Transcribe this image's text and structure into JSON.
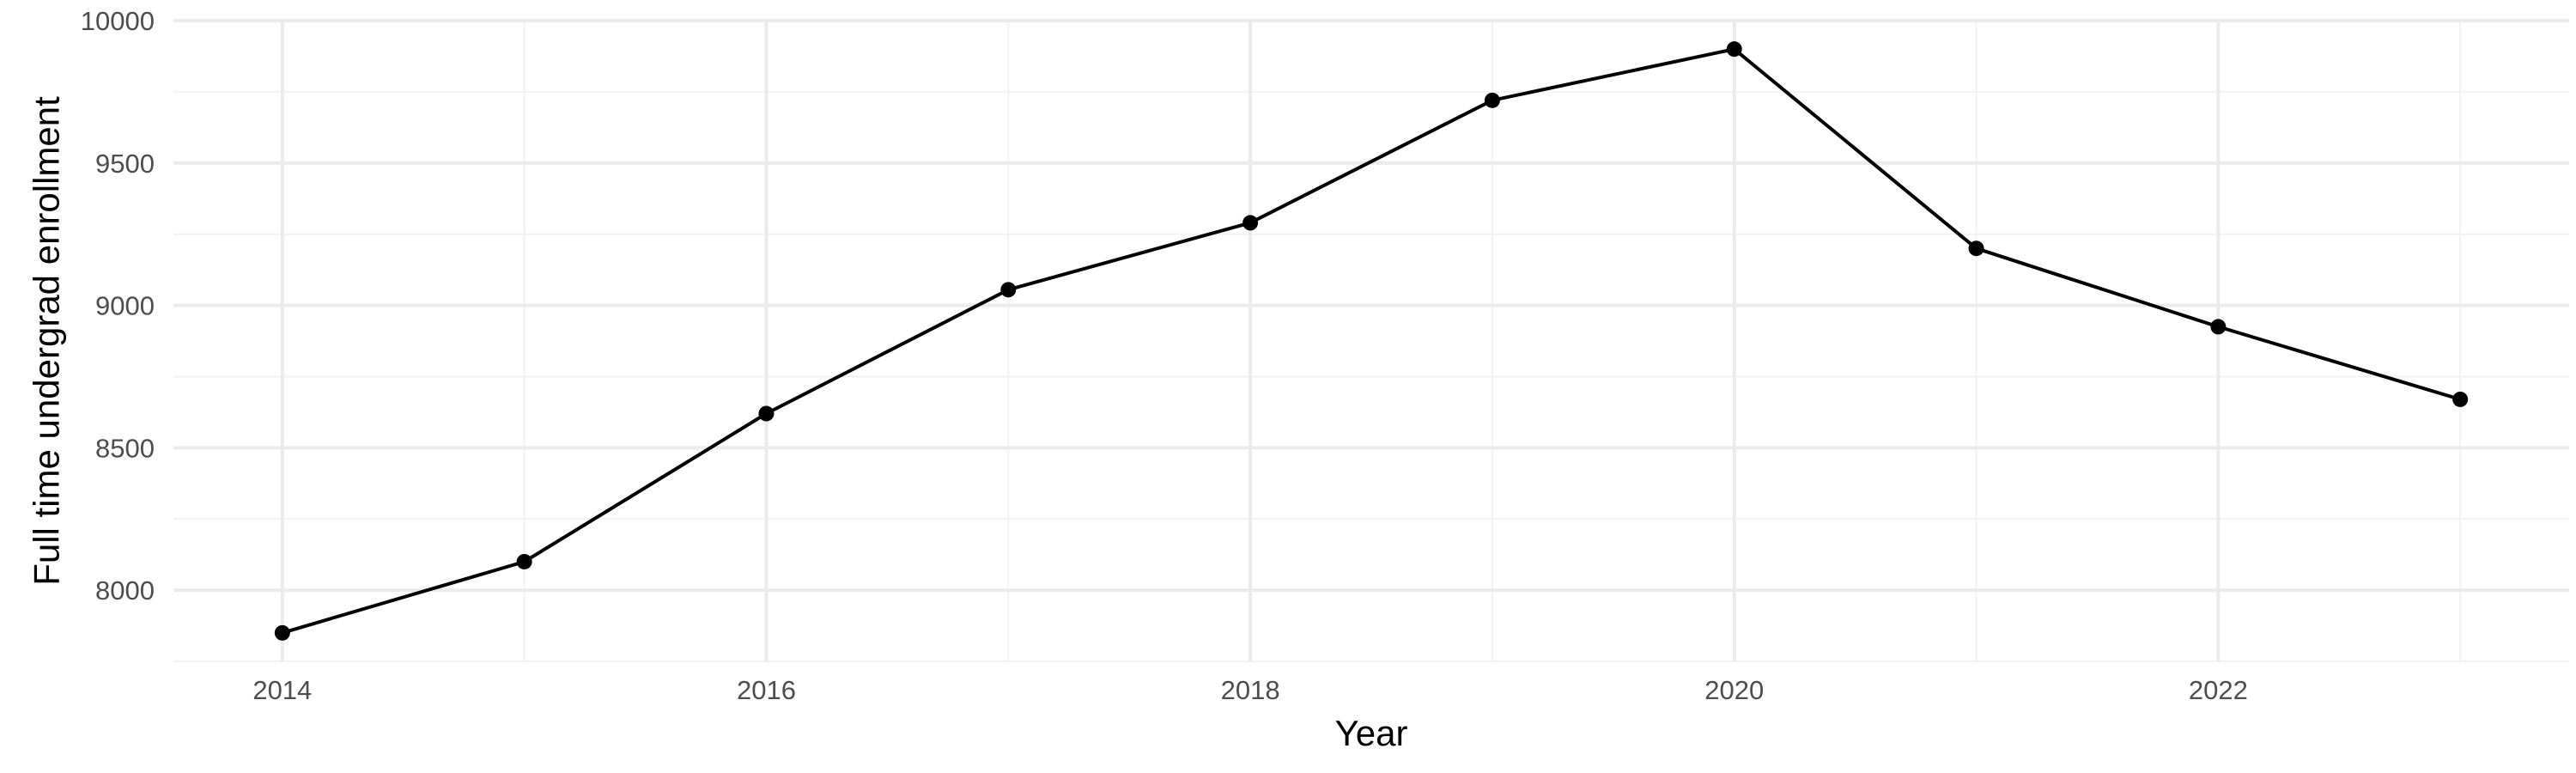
{
  "chart_data": {
    "type": "line",
    "title": "",
    "xlabel": "Year",
    "ylabel": "Full time undergrad enrollment",
    "x": [
      2014,
      2015,
      2016,
      2017,
      2018,
      2019,
      2020,
      2021,
      2022,
      2023
    ],
    "series": [
      {
        "values": [
          7850,
          8100,
          8620,
          9055,
          9290,
          9720,
          9900,
          9200,
          8925,
          8670
        ]
      }
    ],
    "xlim": [
      2013.55,
      2023.45
    ],
    "ylim": [
      7750,
      10000
    ],
    "x_ticks": [
      2014,
      2016,
      2018,
      2020,
      2022
    ],
    "x_tick_labels": [
      "2014",
      "2016",
      "2018",
      "2020",
      "2022"
    ],
    "y_ticks": [
      8000,
      8500,
      9000,
      9500,
      10000
    ],
    "y_tick_labels": [
      "8000",
      "8500",
      "9000",
      "9500",
      "10000"
    ],
    "grid": true,
    "legend": "none",
    "colors": {
      "line": "#000000",
      "grid": "#ebebeb",
      "background": "#ffffff"
    }
  }
}
